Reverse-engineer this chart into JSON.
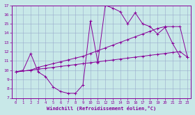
{
  "xlabel": "Windchill (Refroidissement éolien,°C)",
  "xlim": [
    -0.5,
    23.5
  ],
  "ylim": [
    7,
    17
  ],
  "yticks": [
    7,
    8,
    9,
    10,
    11,
    12,
    13,
    14,
    15,
    16,
    17
  ],
  "xticks": [
    0,
    1,
    2,
    3,
    4,
    5,
    6,
    7,
    8,
    9,
    10,
    11,
    12,
    13,
    14,
    15,
    16,
    17,
    18,
    19,
    20,
    21,
    22,
    23
  ],
  "bg_color": "#c8e8e8",
  "grid_color": "#99aacc",
  "line_color": "#880099",
  "curve_x": [
    0,
    1,
    2,
    3,
    4,
    5,
    6,
    7,
    8,
    9,
    10,
    11,
    12,
    13,
    14,
    15,
    16,
    17,
    18,
    19,
    20,
    21,
    22
  ],
  "curve_y": [
    9.8,
    10.0,
    11.8,
    9.8,
    9.3,
    8.2,
    7.7,
    7.5,
    7.5,
    8.4,
    15.3,
    10.8,
    17.0,
    16.7,
    16.3,
    15.0,
    16.2,
    15.0,
    14.7,
    13.9,
    14.6,
    12.9,
    11.5
  ],
  "upper_x": [
    0,
    2,
    3,
    4,
    5,
    6,
    7,
    8,
    9,
    10,
    11,
    12,
    13,
    14,
    15,
    16,
    17,
    18,
    19,
    20,
    21,
    22,
    23
  ],
  "upper_y": [
    9.8,
    10.0,
    10.3,
    10.5,
    10.7,
    10.9,
    11.1,
    11.3,
    11.5,
    11.8,
    12.1,
    12.4,
    12.7,
    13.0,
    13.3,
    13.6,
    13.9,
    14.2,
    14.5,
    14.7,
    14.7,
    14.7,
    11.4
  ],
  "lower_x": [
    0,
    2,
    3,
    4,
    5,
    6,
    7,
    8,
    9,
    10,
    11,
    12,
    13,
    14,
    15,
    16,
    17,
    18,
    19,
    20,
    21,
    22,
    23
  ],
  "lower_y": [
    9.8,
    10.0,
    10.1,
    10.2,
    10.3,
    10.4,
    10.5,
    10.6,
    10.7,
    10.8,
    10.9,
    11.0,
    11.1,
    11.2,
    11.3,
    11.4,
    11.5,
    11.6,
    11.7,
    11.8,
    11.9,
    12.0,
    11.4
  ]
}
